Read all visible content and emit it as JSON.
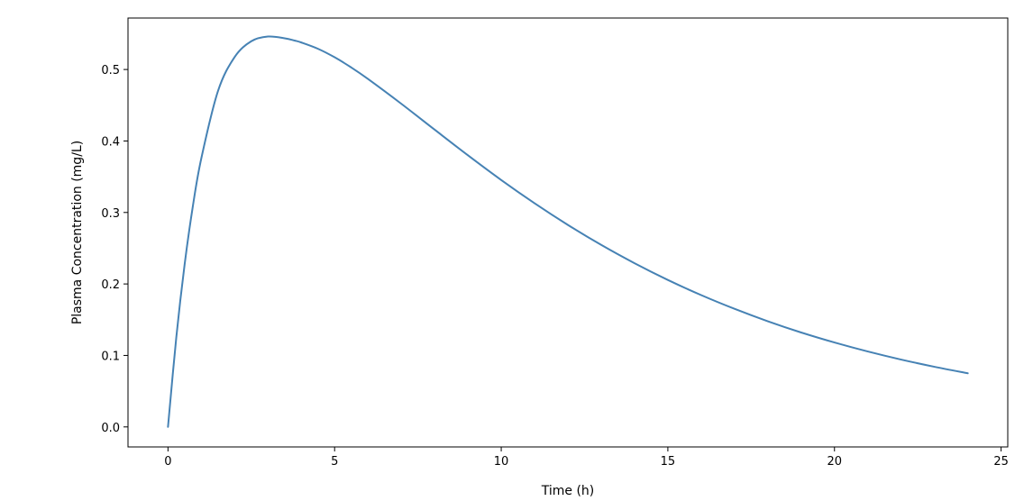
{
  "chart_data": {
    "type": "line",
    "title": "",
    "xlabel": "Time (h)",
    "ylabel": "Plasma Concentration (mg/L)",
    "xlim": [
      -1.2,
      25.2
    ],
    "ylim": [
      -0.028,
      0.572
    ],
    "xticks": [
      0,
      5,
      10,
      15,
      20,
      25
    ],
    "yticks": [
      0.0,
      0.1,
      0.2,
      0.3,
      0.4,
      0.5
    ],
    "xtick_labels": [
      "0",
      "5",
      "10",
      "15",
      "20",
      "25"
    ],
    "ytick_labels": [
      "0.0",
      "0.1",
      "0.2",
      "0.3",
      "0.4",
      "0.5"
    ],
    "grid": false,
    "legend": "none",
    "series": [
      {
        "color": "#4682b4",
        "x": [
          0,
          0.25,
          0.5,
          0.75,
          1,
          1.5,
          2,
          2.5,
          3,
          3.5,
          3.8,
          4,
          4.5,
          5,
          5.5,
          6,
          7,
          8,
          9,
          10,
          11,
          12,
          13,
          14,
          15,
          16,
          17,
          18,
          19,
          20,
          21,
          22,
          23,
          24
        ],
        "y": [
          0.0,
          0.1256,
          0.2276,
          0.3099,
          0.3757,
          0.4698,
          0.5174,
          0.5395,
          0.5461,
          0.5437,
          0.5405,
          0.5378,
          0.529,
          0.5171,
          0.5028,
          0.4868,
          0.4521,
          0.4159,
          0.38,
          0.3454,
          0.3129,
          0.2826,
          0.2546,
          0.229,
          0.2056,
          0.1844,
          0.1652,
          0.1478,
          0.1321,
          0.1181,
          0.1055,
          0.0942,
          0.0841,
          0.075
        ]
      }
    ]
  }
}
